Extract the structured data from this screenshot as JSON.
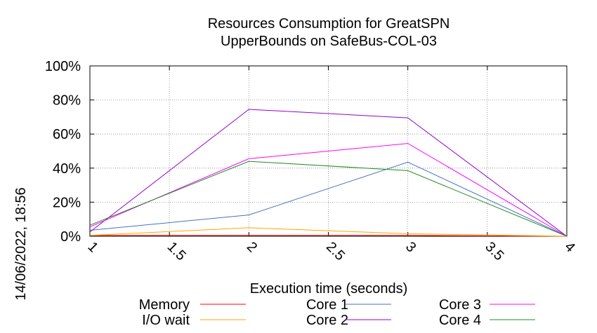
{
  "chart_data": {
    "type": "line",
    "title": "Resources Consumption for GreatSPN",
    "subtitle": "UpperBounds on SafeBus-COL-03",
    "xlabel": "Execution time (seconds)",
    "ylabel": "",
    "xlim": [
      1,
      4
    ],
    "ylim": [
      0,
      100
    ],
    "x_ticks": [
      "1",
      "1.5",
      "2",
      "2.5",
      "3",
      "3.5",
      "4"
    ],
    "y_ticks": [
      "0%",
      "20%",
      "40%",
      "60%",
      "80%",
      "100%"
    ],
    "grid": true,
    "legend_position": "bottom",
    "timestamp": "14/06/2022, 18:56",
    "series": [
      {
        "name": "Memory",
        "color": "#ff0000",
        "x": [
          1,
          2,
          3,
          4
        ],
        "y": [
          0.5,
          0.5,
          0.5,
          0.0
        ]
      },
      {
        "name": "I/O wait",
        "color": "#ffa500",
        "x": [
          1,
          2,
          3,
          4
        ],
        "y": [
          0.5,
          5,
          1.5,
          0.0
        ]
      },
      {
        "name": "Core 1",
        "color": "#4472c4",
        "x": [
          1,
          2,
          3,
          4
        ],
        "y": [
          3.5,
          12.5,
          43.5,
          0.0
        ]
      },
      {
        "name": "Core 2",
        "color": "#9400d3",
        "x": [
          1,
          2,
          3,
          4
        ],
        "y": [
          2.5,
          74.5,
          69.5,
          0.0
        ]
      },
      {
        "name": "Core 3",
        "color": "#ff00ff",
        "x": [
          1,
          2,
          3,
          4
        ],
        "y": [
          5.5,
          45.5,
          54.5,
          0.0
        ]
      },
      {
        "name": "Core 4",
        "color": "#228b22",
        "x": [
          1,
          2,
          3,
          4
        ],
        "y": [
          6.5,
          44.0,
          38.5,
          0.0
        ]
      }
    ]
  }
}
